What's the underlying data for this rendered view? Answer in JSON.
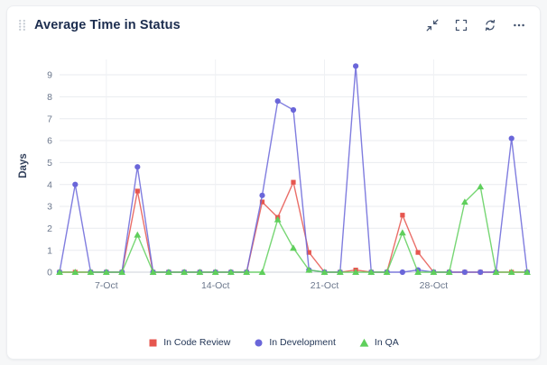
{
  "header": {
    "title": "Average Time in Status",
    "icons": [
      "drag-handle-icon",
      "collapse-icon",
      "fullscreen-icon",
      "refresh-icon",
      "more-options-icon"
    ]
  },
  "chart_data": {
    "type": "line",
    "title": "Average Time in Status",
    "xlabel": "",
    "ylabel": "Days",
    "ylim": [
      0,
      9.7
    ],
    "yticks": [
      0,
      1,
      2,
      3,
      4,
      5,
      6,
      7,
      8,
      9
    ],
    "grid": true,
    "legend_position": "bottom",
    "x": [
      "4-Oct",
      "5-Oct",
      "6-Oct",
      "7-Oct",
      "8-Oct",
      "9-Oct",
      "10-Oct",
      "11-Oct",
      "12-Oct",
      "13-Oct",
      "14-Oct",
      "15-Oct",
      "16-Oct",
      "17-Oct",
      "18-Oct",
      "19-Oct",
      "20-Oct",
      "21-Oct",
      "22-Oct",
      "23-Oct",
      "24-Oct",
      "25-Oct",
      "26-Oct",
      "27-Oct",
      "28-Oct",
      "29-Oct",
      "30-Oct",
      "31-Oct",
      "1-Nov",
      "2-Nov",
      "3-Nov"
    ],
    "xtick_labels": [
      "7-Oct",
      "14-Oct",
      "21-Oct",
      "28-Oct"
    ],
    "xtick_indices": [
      3,
      10,
      17,
      24
    ],
    "series": [
      {
        "name": "In Code Review",
        "color": "#e6564f",
        "marker": "square",
        "values": [
          0,
          0,
          0,
          0,
          0,
          3.7,
          0,
          0,
          0,
          0,
          0,
          0,
          0,
          3.2,
          2.5,
          4.1,
          0.9,
          0,
          0,
          0.1,
          0,
          0,
          2.6,
          0.9,
          0,
          0,
          0,
          0,
          0,
          0,
          0
        ]
      },
      {
        "name": "In Development",
        "color": "#6a66d9",
        "marker": "circle",
        "values": [
          0,
          4,
          0,
          0,
          0,
          4.8,
          0,
          0,
          0,
          0,
          0,
          0,
          0,
          3.5,
          7.8,
          7.4,
          0.1,
          0,
          0,
          9.4,
          0,
          0,
          0,
          0.1,
          0,
          0,
          0,
          0,
          0,
          6.1,
          0
        ]
      },
      {
        "name": "In QA",
        "color": "#5fcf5c",
        "marker": "triangle",
        "values": [
          0,
          0,
          0,
          0,
          0,
          1.7,
          0,
          0,
          0,
          0,
          0,
          0,
          0,
          0,
          2.4,
          1.1,
          0.1,
          0,
          0,
          0,
          0,
          0,
          1.8,
          0,
          0,
          0,
          3.2,
          3.9,
          0,
          0,
          0
        ]
      }
    ]
  }
}
